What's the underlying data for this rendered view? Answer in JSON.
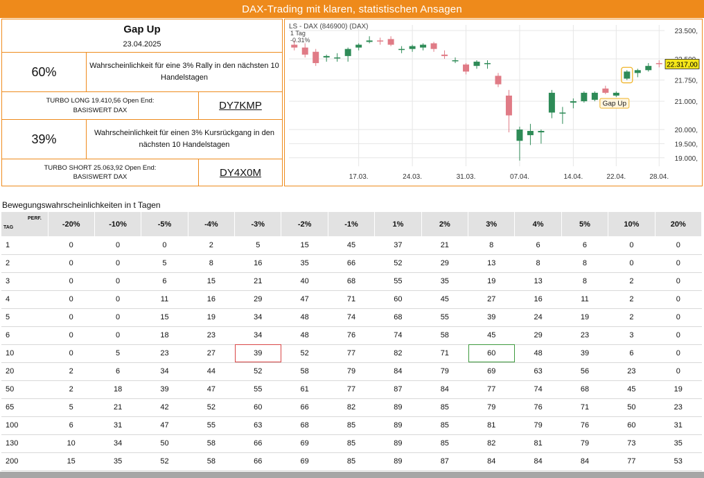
{
  "banner": {
    "title": "DAX-Trading mit klaren, statistischen Ansagen"
  },
  "signal": {
    "name": "Gap Up",
    "date": "23.04.2025"
  },
  "long": {
    "probability": "60%",
    "description": "Wahrscheinlichkeit für eine 3% Rally in den nächsten 10 Handelstagen",
    "product": "TURBO LONG 19.410,56 Open End: BASISWERT DAX",
    "wkn": "DY7KMP"
  },
  "short": {
    "probability": "39%",
    "description": "Wahrscheinlichkeit für einen 3% Kursrückgang in den nächsten 10 Handelstagen",
    "product": "TURBO SHORT 25.063,92 Open End: BASISWERT DAX",
    "wkn": "DY4X0M"
  },
  "colors": {
    "accent": "#ee8a1b",
    "up_candle": "#2e8b57",
    "down_candle": "#e07b86",
    "highlight_red": "#d94545",
    "highlight_green": "#3d9a3d"
  },
  "chart_data": {
    "type": "candlestick",
    "title": "LS - DAX (846900) (DAX)",
    "interval_label": "1 Tag",
    "change_label": "-0.31%",
    "last_price_label": "22.317,00",
    "annotation": "Gap Up",
    "ylim": [
      18700,
      23700
    ],
    "y_ticks": [
      23500,
      22500,
      21750,
      21000,
      20000,
      19500,
      19000
    ],
    "y_tick_labels": [
      "23.500,",
      "22.500,",
      "21.750,",
      "21.000,",
      "20.000,",
      "19.500,",
      "19.000,"
    ],
    "x_tick_labels": [
      {
        "label": "17.03.",
        "index": 6
      },
      {
        "label": "24.03.",
        "index": 11
      },
      {
        "label": "31.03.",
        "index": 16
      },
      {
        "label": "07.04.",
        "index": 21
      },
      {
        "label": "14.04.",
        "index": 26
      },
      {
        "label": "22.04.",
        "index": 30
      },
      {
        "label": "28.04.",
        "index": 34
      }
    ],
    "grid": true,
    "candles": [
      {
        "o": 23000,
        "h": 23150,
        "l": 22800,
        "c": 22900
      },
      {
        "o": 22900,
        "h": 23050,
        "l": 22550,
        "c": 22650
      },
      {
        "o": 22750,
        "h": 22850,
        "l": 22250,
        "c": 22350
      },
      {
        "o": 22550,
        "h": 22650,
        "l": 22400,
        "c": 22600
      },
      {
        "o": 22550,
        "h": 22700,
        "l": 22400,
        "c": 22550
      },
      {
        "o": 22600,
        "h": 22900,
        "l": 22400,
        "c": 22850
      },
      {
        "o": 22900,
        "h": 23050,
        "l": 22800,
        "c": 23000
      },
      {
        "o": 23100,
        "h": 23300,
        "l": 23050,
        "c": 23150
      },
      {
        "o": 23150,
        "h": 23250,
        "l": 23000,
        "c": 23130
      },
      {
        "o": 23200,
        "h": 23300,
        "l": 22950,
        "c": 23000
      },
      {
        "o": 22850,
        "h": 22950,
        "l": 22700,
        "c": 22850
      },
      {
        "o": 22850,
        "h": 23000,
        "l": 22750,
        "c": 22950
      },
      {
        "o": 22900,
        "h": 23050,
        "l": 22800,
        "c": 23000
      },
      {
        "o": 23050,
        "h": 23100,
        "l": 22750,
        "c": 22850
      },
      {
        "o": 22650,
        "h": 22800,
        "l": 22500,
        "c": 22600
      },
      {
        "o": 22450,
        "h": 22550,
        "l": 22350,
        "c": 22450
      },
      {
        "o": 22300,
        "h": 22350,
        "l": 21950,
        "c": 22050
      },
      {
        "o": 22250,
        "h": 22450,
        "l": 22150,
        "c": 22400
      },
      {
        "o": 22350,
        "h": 22450,
        "l": 22150,
        "c": 22350
      },
      {
        "o": 21900,
        "h": 22000,
        "l": 21500,
        "c": 21600
      },
      {
        "o": 21200,
        "h": 21400,
        "l": 19900,
        "c": 20500
      },
      {
        "o": 19600,
        "h": 20100,
        "l": 18900,
        "c": 20000
      },
      {
        "o": 19800,
        "h": 20200,
        "l": 19450,
        "c": 19950
      },
      {
        "o": 19900,
        "h": 20000,
        "l": 19500,
        "c": 19950
      },
      {
        "o": 20600,
        "h": 21400,
        "l": 20400,
        "c": 21300
      },
      {
        "o": 20600,
        "h": 20800,
        "l": 20200,
        "c": 20600
      },
      {
        "o": 20950,
        "h": 21100,
        "l": 20750,
        "c": 21000
      },
      {
        "o": 21000,
        "h": 21350,
        "l": 20950,
        "c": 21300
      },
      {
        "o": 21050,
        "h": 21350,
        "l": 21000,
        "c": 21300
      },
      {
        "o": 21450,
        "h": 21550,
        "l": 21250,
        "c": 21300
      },
      {
        "o": 21200,
        "h": 21350,
        "l": 21150,
        "c": 21300
      },
      {
        "o": 21800,
        "h": 22100,
        "l": 21750,
        "c": 22050
      },
      {
        "o": 22000,
        "h": 22150,
        "l": 21850,
        "c": 22100
      },
      {
        "o": 22100,
        "h": 22350,
        "l": 22050,
        "c": 22250
      },
      {
        "o": 22350,
        "h": 22450,
        "l": 22200,
        "c": 22320
      }
    ]
  },
  "table": {
    "title": "Bewegungswahrscheinlichkeiten in t Tagen",
    "corner_row_label": "TAG",
    "corner_col_label": "PERF.",
    "columns": [
      "-20%",
      "-10%",
      "-5%",
      "-4%",
      "-3%",
      "-2%",
      "-1%",
      "1%",
      "2%",
      "3%",
      "4%",
      "5%",
      "10%",
      "20%"
    ],
    "rows": [
      {
        "tag": "1",
        "values": [
          "0",
          "0",
          "0",
          "2",
          "5",
          "15",
          "45",
          "37",
          "21",
          "8",
          "6",
          "6",
          "0",
          "0"
        ]
      },
      {
        "tag": "2",
        "values": [
          "0",
          "0",
          "5",
          "8",
          "16",
          "35",
          "66",
          "52",
          "29",
          "13",
          "8",
          "8",
          "0",
          "0"
        ]
      },
      {
        "tag": "3",
        "values": [
          "0",
          "0",
          "6",
          "15",
          "21",
          "40",
          "68",
          "55",
          "35",
          "19",
          "13",
          "8",
          "2",
          "0"
        ]
      },
      {
        "tag": "4",
        "values": [
          "0",
          "0",
          "11",
          "16",
          "29",
          "47",
          "71",
          "60",
          "45",
          "27",
          "16",
          "11",
          "2",
          "0"
        ]
      },
      {
        "tag": "5",
        "values": [
          "0",
          "0",
          "15",
          "19",
          "34",
          "48",
          "74",
          "68",
          "55",
          "39",
          "24",
          "19",
          "2",
          "0"
        ]
      },
      {
        "tag": "6",
        "values": [
          "0",
          "0",
          "18",
          "23",
          "34",
          "48",
          "76",
          "74",
          "58",
          "45",
          "29",
          "23",
          "3",
          "0"
        ]
      },
      {
        "tag": "10",
        "values": [
          "0",
          "5",
          "23",
          "27",
          "39",
          "52",
          "77",
          "82",
          "71",
          "60",
          "48",
          "39",
          "6",
          "0"
        ]
      },
      {
        "tag": "20",
        "values": [
          "2",
          "6",
          "34",
          "44",
          "52",
          "58",
          "79",
          "84",
          "79",
          "69",
          "63",
          "56",
          "23",
          "0"
        ]
      },
      {
        "tag": "50",
        "values": [
          "2",
          "18",
          "39",
          "47",
          "55",
          "61",
          "77",
          "87",
          "84",
          "77",
          "74",
          "68",
          "45",
          "19"
        ]
      },
      {
        "tag": "65",
        "values": [
          "5",
          "21",
          "42",
          "52",
          "60",
          "66",
          "82",
          "89",
          "85",
          "79",
          "76",
          "71",
          "50",
          "23"
        ]
      },
      {
        "tag": "100",
        "values": [
          "6",
          "31",
          "47",
          "55",
          "63",
          "68",
          "85",
          "89",
          "85",
          "81",
          "79",
          "76",
          "60",
          "31"
        ]
      },
      {
        "tag": "130",
        "values": [
          "10",
          "34",
          "50",
          "58",
          "66",
          "69",
          "85",
          "89",
          "85",
          "82",
          "81",
          "79",
          "73",
          "35"
        ]
      },
      {
        "tag": "200",
        "values": [
          "15",
          "35",
          "52",
          "58",
          "66",
          "69",
          "85",
          "89",
          "87",
          "84",
          "84",
          "84",
          "77",
          "53"
        ]
      }
    ]
  }
}
